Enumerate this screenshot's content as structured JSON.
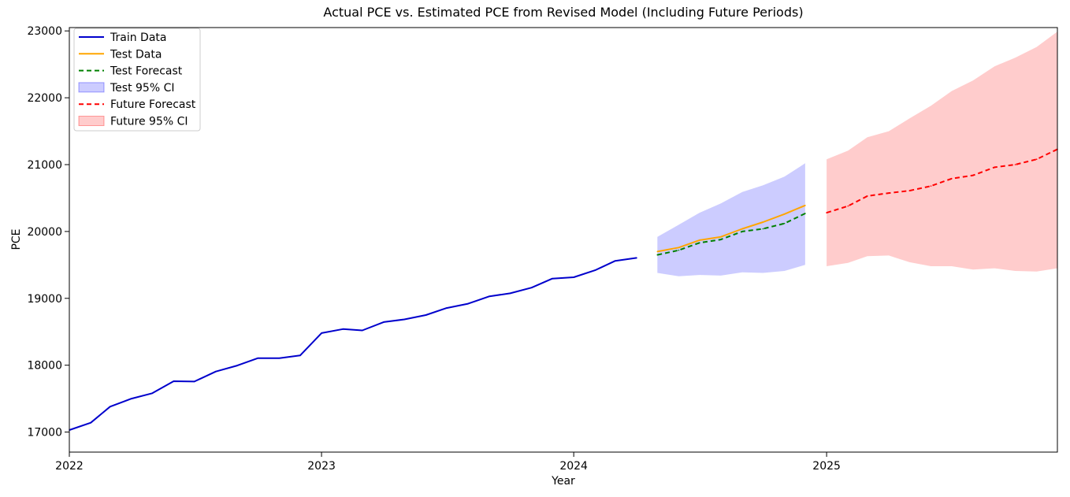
{
  "chart_data": {
    "type": "line",
    "title": "Actual PCE vs. Estimated PCE from Revised Model (Including Future Periods)",
    "xlabel": "Year",
    "ylabel": "PCE",
    "xlim": [
      "2022-01-01",
      "2025-12-01"
    ],
    "ylim": [
      16700,
      23050
    ],
    "x_ticks": [
      "2022-01-01",
      "2023-01-01",
      "2024-01-01",
      "2025-01-01"
    ],
    "x_tick_labels": [
      "2022",
      "2023",
      "2024",
      "2025"
    ],
    "y_ticks": [
      17000,
      18000,
      19000,
      20000,
      21000,
      22000,
      23000
    ],
    "y_tick_labels": [
      "17000",
      "18000",
      "19000",
      "20000",
      "21000",
      "22000",
      "23000"
    ],
    "grid": false,
    "legend_position": "top-left",
    "series": [
      {
        "name": "Train Data",
        "kind": "line",
        "color": "#0000cc",
        "dashed": false,
        "x": [
          "2022-01-01",
          "2022-02-01",
          "2022-03-01",
          "2022-04-01",
          "2022-05-01",
          "2022-06-01",
          "2022-07-01",
          "2022-08-01",
          "2022-09-01",
          "2022-10-01",
          "2022-11-01",
          "2022-12-01",
          "2023-01-01",
          "2023-02-01",
          "2023-03-01",
          "2023-04-01",
          "2023-05-01",
          "2023-06-01",
          "2023-07-01",
          "2023-08-01",
          "2023-09-01",
          "2023-10-01",
          "2023-11-01",
          "2023-12-01",
          "2024-01-01",
          "2024-02-01",
          "2024-03-01",
          "2024-04-01"
        ],
        "y": [
          17030,
          17140,
          17380,
          17500,
          17580,
          17760,
          17755,
          17905,
          17995,
          18105,
          18105,
          18145,
          18480,
          18540,
          18520,
          18645,
          18685,
          18750,
          18855,
          18920,
          19030,
          19075,
          19160,
          19295,
          19315,
          19420,
          19560,
          19605
        ]
      },
      {
        "name": "Test Data",
        "kind": "line",
        "color": "#ffa500",
        "dashed": false,
        "x": [
          "2024-05-01",
          "2024-06-01",
          "2024-07-01",
          "2024-08-01",
          "2024-09-01",
          "2024-10-01",
          "2024-11-01",
          "2024-12-01"
        ],
        "y": [
          19700,
          19760,
          19870,
          19920,
          20040,
          20140,
          20260,
          20390
        ]
      },
      {
        "name": "Test Forecast",
        "kind": "line",
        "color": "#008000",
        "dashed": true,
        "x": [
          "2024-05-01",
          "2024-06-01",
          "2024-07-01",
          "2024-08-01",
          "2024-09-01",
          "2024-10-01",
          "2024-11-01",
          "2024-12-01"
        ],
        "y": [
          19650,
          19720,
          19830,
          19880,
          20000,
          20040,
          20120,
          20270
        ]
      },
      {
        "name": "Test 95% CI",
        "kind": "band",
        "color": "#0000ff",
        "opacity": 0.2,
        "x": [
          "2024-05-01",
          "2024-06-01",
          "2024-07-01",
          "2024-08-01",
          "2024-09-01",
          "2024-10-01",
          "2024-11-01",
          "2024-12-01"
        ],
        "lower": [
          19380,
          19330,
          19350,
          19340,
          19390,
          19380,
          19410,
          19500
        ],
        "upper": [
          19920,
          20100,
          20280,
          20420,
          20590,
          20690,
          20820,
          21020
        ]
      },
      {
        "name": "Future Forecast",
        "kind": "line",
        "color": "#ff0000",
        "dashed": true,
        "x": [
          "2025-01-01",
          "2025-02-01",
          "2025-03-01",
          "2025-04-01",
          "2025-05-01",
          "2025-06-01",
          "2025-07-01",
          "2025-08-01",
          "2025-09-01",
          "2025-10-01",
          "2025-11-01",
          "2025-12-01"
        ],
        "y": [
          20280,
          20380,
          20530,
          20575,
          20610,
          20680,
          20790,
          20840,
          20960,
          21000,
          21080,
          21230
        ]
      },
      {
        "name": "Future 95% CI",
        "kind": "band",
        "color": "#ff0000",
        "opacity": 0.2,
        "x": [
          "2025-01-01",
          "2025-02-01",
          "2025-03-01",
          "2025-04-01",
          "2025-05-01",
          "2025-06-01",
          "2025-07-01",
          "2025-08-01",
          "2025-09-01",
          "2025-10-01",
          "2025-11-01",
          "2025-12-01"
        ],
        "lower": [
          19480,
          19530,
          19630,
          19640,
          19540,
          19480,
          19480,
          19430,
          19450,
          19410,
          19400,
          19450
        ],
        "upper": [
          21080,
          21210,
          21410,
          21500,
          21690,
          21880,
          22100,
          22260,
          22470,
          22600,
          22760,
          22990
        ]
      }
    ]
  }
}
